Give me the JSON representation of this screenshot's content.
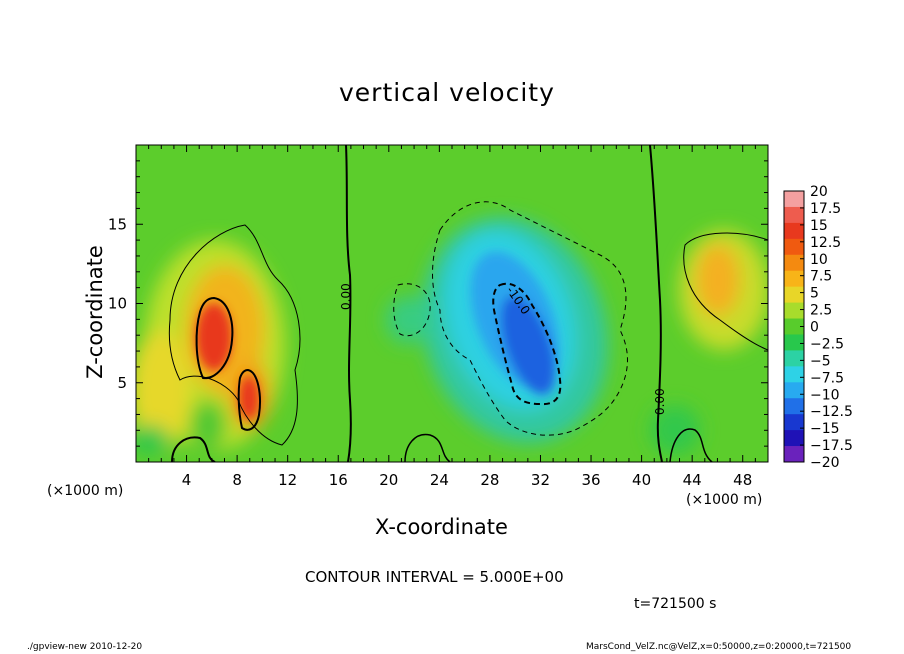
{
  "chart_data": {
    "type": "heatmap",
    "title": "vertical velocity",
    "xlabel": "X-coordinate",
    "ylabel": "Z-coordinate",
    "x_unit_label": "(×1000 m)",
    "y_unit_label": "(×1000 m)",
    "xlim": [
      0,
      50
    ],
    "ylim": [
      0,
      20
    ],
    "x_ticks": [
      4,
      8,
      12,
      16,
      20,
      24,
      28,
      32,
      36,
      40,
      44,
      48
    ],
    "y_ticks": [
      5,
      10,
      15
    ],
    "colorbar_levels": [
      20,
      17.5,
      15,
      12.5,
      10,
      7.5,
      5,
      2.5,
      0,
      -2.5,
      -5,
      -7.5,
      -10,
      -12.5,
      -15,
      -17.5,
      -20
    ],
    "colorbar_colors": [
      "#f4a0a0",
      "#ee5c4e",
      "#e8391e",
      "#f05a10",
      "#f48a10",
      "#f8b418",
      "#e8d628",
      "#a8dc2c",
      "#58cc2c",
      "#28c84c",
      "#2cd2a4",
      "#2ed2e6",
      "#28aaf0",
      "#2070e8",
      "#1838d0",
      "#1f12b6",
      "#6a22bc"
    ],
    "contour_labels": [
      "0.00",
      "-10.0",
      "0.00"
    ],
    "grid": false,
    "legend": "right colorbar"
  },
  "annotations": {
    "contour_interval": "CONTOUR INTERVAL = 5.000E+00",
    "time": "t=721500 s",
    "footer_left": "./gpview-new   2010-12-20",
    "footer_right": "MarsCond_VelZ.nc@VelZ,x=0:50000,z=0:20000,t=721500"
  }
}
